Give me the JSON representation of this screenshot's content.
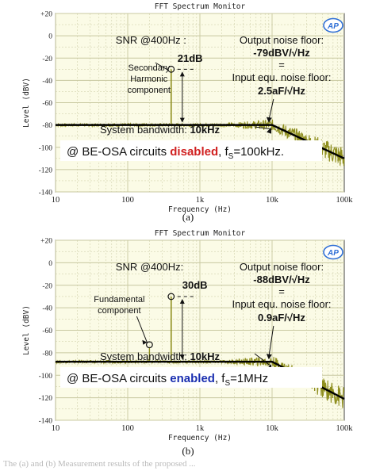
{
  "chart_data": [
    {
      "type": "line",
      "title": "FFT Spectrum Monitor",
      "xlabel": "Frequency (Hz)",
      "ylabel": "Level (dBV)",
      "x_scale": "log",
      "xlim": [
        10,
        100000
      ],
      "ylim": [
        -140,
        20
      ],
      "x_ticks": [
        "10",
        "100",
        "1k",
        "10k",
        "100k"
      ],
      "y_ticks": [
        "+20",
        "0",
        "-20",
        "-40",
        "-60",
        "-80",
        "-100",
        "-120",
        "-140"
      ],
      "grid": true,
      "panel_label": "(a)",
      "logo": "AP",
      "series": {
        "x": [
          10,
          100,
          400,
          1000,
          10000,
          100000
        ],
        "values": [
          -80,
          -80,
          -30,
          -80,
          -80,
          -110
        ]
      },
      "annotations": {
        "snr_label": "SNR @400Hz :",
        "snr_value": "21dB",
        "peak_label_1": "Secondary",
        "peak_label_2": "Harmonic",
        "peak_label_3": "component",
        "out_noise_label": "Output noise floor:",
        "out_noise_value": "-79dBV/√Hz",
        "equals": "=",
        "in_noise_label": "Input equ. noise floor:",
        "in_noise_value": "2.5aF/√Hz",
        "bandwidth_label": "System bandwidth: ",
        "bandwidth_value": "10kHz",
        "condition_prefix": "@ BE-OSA circuits ",
        "condition_state": "disabled",
        "condition_sep": ", f",
        "condition_sub": "S",
        "condition_freq": "=100kHz."
      }
    },
    {
      "type": "line",
      "title": "FFT Spectrum Monitor",
      "xlabel": "Frequency (Hz)",
      "ylabel": "Level (dBV)",
      "x_scale": "log",
      "xlim": [
        10,
        100000
      ],
      "ylim": [
        -140,
        20
      ],
      "x_ticks": [
        "10",
        "100",
        "1k",
        "10k",
        "100k"
      ],
      "y_ticks": [
        "+20",
        "0",
        "-20",
        "-40",
        "-60",
        "-80",
        "-100",
        "-120",
        "-140"
      ],
      "grid": true,
      "panel_label": "(b)",
      "logo": "AP",
      "series": {
        "x": [
          10,
          200,
          400,
          1000,
          10000,
          100000
        ],
        "values": [
          -88,
          -75,
          -30,
          -88,
          -88,
          -121
        ]
      },
      "annotations": {
        "snr_label": "SNR @400Hz:",
        "snr_value": "30dB",
        "peak_label_1": "Fundamental",
        "peak_label_2": "component",
        "out_noise_label": "Output noise floor:",
        "out_noise_value": "-88dBV/√Hz",
        "equals": "=",
        "in_noise_label": "Input equ. noise floor:",
        "in_noise_value": "0.9aF/√Hz",
        "bandwidth_label": "System bandwidth: ",
        "bandwidth_value": "10kHz",
        "condition_prefix": "@ BE-OSA circuits ",
        "condition_state": "enabled",
        "condition_sep": ", f",
        "condition_sub": "S",
        "condition_freq": "=1MHz"
      }
    }
  ],
  "caption": "The  (a) and (b)  Measurement results of the proposed ...",
  "colors": {
    "trace": "#8f8f1f",
    "fit": "#000000",
    "plot_bg": "#fbfbe6",
    "grid": "#c8c8a0",
    "disabled": "#d02020",
    "enabled": "#1a2fb0",
    "logo": "#2f6fd6"
  }
}
